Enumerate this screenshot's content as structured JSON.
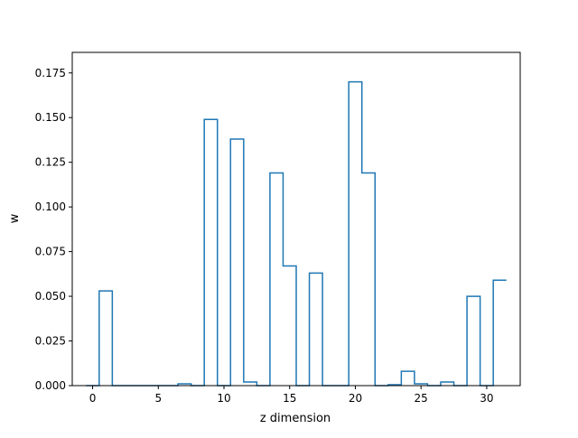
{
  "chart_data": {
    "type": "bar",
    "style": "step-histogram",
    "xlabel": "z dimension",
    "ylabel": "w",
    "xlim": [
      -1.55,
      32.55
    ],
    "ylim": [
      0.0,
      0.1865
    ],
    "xticks": [
      0,
      5,
      10,
      15,
      20,
      25,
      30
    ],
    "xtick_labels": [
      "0",
      "5",
      "10",
      "15",
      "20",
      "25",
      "30"
    ],
    "yticks": [
      0.0,
      0.025,
      0.05,
      0.075,
      0.1,
      0.125,
      0.15,
      0.175
    ],
    "ytick_labels": [
      "0.000",
      "0.025",
      "0.050",
      "0.075",
      "0.100",
      "0.125",
      "0.150",
      "0.175"
    ],
    "categories": [
      0,
      1,
      2,
      3,
      4,
      5,
      6,
      7,
      8,
      9,
      10,
      11,
      12,
      13,
      14,
      15,
      16,
      17,
      18,
      19,
      20,
      21,
      22,
      23,
      24,
      25,
      26,
      27,
      28,
      29,
      30,
      31
    ],
    "values": [
      0.0,
      0.053,
      0.0,
      0.0,
      0.0,
      0.0,
      0.0,
      0.001,
      0.0,
      0.149,
      0.0,
      0.138,
      0.002,
      0.0,
      0.119,
      0.067,
      0.0,
      0.063,
      0.0,
      0.0,
      0.17,
      0.119,
      0.0,
      0.0005,
      0.008,
      0.001,
      0.0,
      0.002,
      0.0,
      0.05,
      0.0,
      0.059
    ],
    "line_color": "#1f77b4",
    "grid": false,
    "legend": "none"
  }
}
